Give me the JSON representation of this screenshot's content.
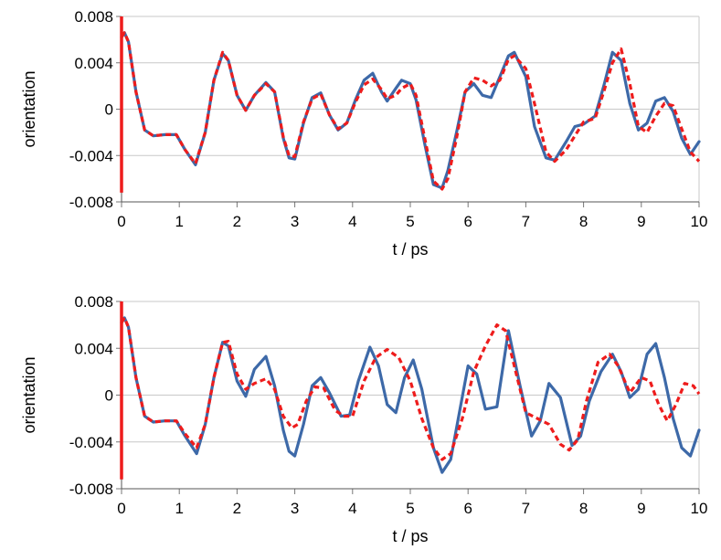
{
  "chart_data": [
    {
      "type": "line",
      "xlabel": "t / ps",
      "ylabel": "orientation",
      "xlim": [
        0,
        10
      ],
      "ylim": [
        -0.008,
        0.008
      ],
      "xticks": [
        0,
        1,
        2,
        3,
        4,
        5,
        6,
        7,
        8,
        9,
        10
      ],
      "yticks": [
        -0.008,
        -0.004,
        0,
        0.004,
        0.008
      ],
      "xtick_labels": [
        "0",
        "1",
        "2",
        "3",
        "4",
        "5",
        "6",
        "7",
        "8",
        "9",
        "10"
      ],
      "ytick_labels": [
        "-0.008",
        "-0.004",
        "0",
        "0.004",
        "0.008"
      ],
      "grid": "horizontal",
      "series": [
        {
          "color": "#3d69a8",
          "style": "solid",
          "x": [
            0,
            0.05,
            0.12,
            0.25,
            0.4,
            0.55,
            0.75,
            0.95,
            1.1,
            1.28,
            1.45,
            1.6,
            1.75,
            1.85,
            2.0,
            2.15,
            2.3,
            2.5,
            2.65,
            2.8,
            2.9,
            3.0,
            3.15,
            3.3,
            3.45,
            3.6,
            3.75,
            3.9,
            4.05,
            4.2,
            4.35,
            4.5,
            4.6,
            4.75,
            4.85,
            5.0,
            5.1,
            5.25,
            5.4,
            5.55,
            5.65,
            5.8,
            5.95,
            6.1,
            6.25,
            6.4,
            6.55,
            6.7,
            6.8,
            7.0,
            7.15,
            7.35,
            7.5,
            7.7,
            7.85,
            8.0,
            8.2,
            8.35,
            8.5,
            8.65,
            8.8,
            8.95,
            9.1,
            9.25,
            9.4,
            9.55,
            9.7,
            9.85,
            10
          ],
          "y": [
            0.0062,
            0.0066,
            0.0058,
            0.0015,
            -0.0018,
            -0.0023,
            -0.0022,
            -0.0022,
            -0.0035,
            -0.0048,
            -0.002,
            0.0025,
            0.0048,
            0.0042,
            0.0012,
            -0.0001,
            0.0012,
            0.0023,
            0.0015,
            -0.0025,
            -0.0042,
            -0.0043,
            -0.0012,
            0.001,
            0.0014,
            -0.0005,
            -0.0018,
            -0.0012,
            0.0008,
            0.0025,
            0.0031,
            0.0015,
            0.0007,
            0.0018,
            0.0025,
            0.0022,
            0.0008,
            -0.003,
            -0.0065,
            -0.0068,
            -0.0053,
            -0.002,
            0.0015,
            0.0022,
            0.0012,
            0.001,
            0.0028,
            0.0046,
            0.0049,
            0.0028,
            -0.0015,
            -0.0042,
            -0.0044,
            -0.0028,
            -0.0015,
            -0.0013,
            -0.0006,
            0.002,
            0.0049,
            0.0042,
            0.0005,
            -0.0018,
            -0.0012,
            0.0007,
            0.001,
            -0.0002,
            -0.0025,
            -0.0039,
            -0.0028
          ]
        },
        {
          "color": "#ee1c1c",
          "style": "dashed",
          "x": [
            0,
            0.05,
            0.12,
            0.25,
            0.4,
            0.55,
            0.75,
            0.95,
            1.1,
            1.28,
            1.45,
            1.6,
            1.75,
            1.85,
            2.0,
            2.15,
            2.3,
            2.5,
            2.65,
            2.8,
            2.9,
            3.0,
            3.15,
            3.3,
            3.45,
            3.6,
            3.75,
            3.9,
            4.05,
            4.2,
            4.35,
            4.5,
            4.6,
            4.75,
            4.85,
            5.0,
            5.1,
            5.25,
            5.4,
            5.55,
            5.65,
            5.8,
            5.95,
            6.1,
            6.25,
            6.4,
            6.55,
            6.7,
            6.8,
            7.0,
            7.15,
            7.35,
            7.5,
            7.7,
            7.85,
            8.0,
            8.2,
            8.35,
            8.5,
            8.65,
            8.8,
            8.95,
            9.1,
            9.25,
            9.4,
            9.55,
            9.7,
            9.85,
            10
          ],
          "y": [
            0.0062,
            0.0066,
            0.0058,
            0.0015,
            -0.0018,
            -0.0023,
            -0.0022,
            -0.0022,
            -0.0035,
            -0.0047,
            -0.002,
            0.0025,
            0.0049,
            0.0042,
            0.0012,
            -0.0001,
            0.0012,
            0.0022,
            0.0015,
            -0.0024,
            -0.004,
            -0.0041,
            -0.0011,
            0.0009,
            0.0013,
            -0.0005,
            -0.0017,
            -0.0012,
            0.0006,
            0.0021,
            0.0026,
            0.0017,
            0.0009,
            0.0012,
            0.0018,
            0.0022,
            0.0012,
            -0.0025,
            -0.0062,
            -0.0069,
            -0.006,
            -0.0025,
            0.0015,
            0.0027,
            0.0025,
            0.002,
            0.0025,
            0.0043,
            0.0046,
            0.0035,
            0.0005,
            -0.0037,
            -0.0045,
            -0.0035,
            -0.0023,
            -0.0011,
            -0.0008,
            0.0015,
            0.004,
            0.0052,
            0.0022,
            -0.0015,
            -0.002,
            -0.0006,
            0.0005,
            0.0003,
            -0.0017,
            -0.0037,
            -0.0045
          ]
        }
      ]
    },
    {
      "type": "line",
      "xlabel": "t / ps",
      "ylabel": "orientation",
      "xlim": [
        0,
        10
      ],
      "ylim": [
        -0.008,
        0.008
      ],
      "xticks": [
        0,
        1,
        2,
        3,
        4,
        5,
        6,
        7,
        8,
        9,
        10
      ],
      "yticks": [
        -0.008,
        -0.004,
        0,
        0.004,
        0.008
      ],
      "xtick_labels": [
        "0",
        "1",
        "2",
        "3",
        "4",
        "5",
        "6",
        "7",
        "8",
        "9",
        "10"
      ],
      "ytick_labels": [
        "-0.008",
        "-0.004",
        "0",
        "0.004",
        "0.008"
      ],
      "grid": "horizontal",
      "series": [
        {
          "color": "#3d69a8",
          "style": "solid",
          "x": [
            0,
            0.05,
            0.12,
            0.25,
            0.4,
            0.55,
            0.75,
            0.95,
            1.1,
            1.3,
            1.45,
            1.6,
            1.75,
            1.85,
            2.0,
            2.15,
            2.3,
            2.5,
            2.65,
            2.8,
            2.9,
            3.0,
            3.15,
            3.3,
            3.45,
            3.6,
            3.8,
            3.95,
            4.1,
            4.3,
            4.45,
            4.6,
            4.75,
            4.9,
            5.05,
            5.2,
            5.4,
            5.55,
            5.7,
            5.85,
            6.0,
            6.15,
            6.3,
            6.5,
            6.7,
            6.9,
            7.1,
            7.25,
            7.4,
            7.6,
            7.8,
            7.95,
            8.1,
            8.3,
            8.5,
            8.65,
            8.8,
            8.95,
            9.1,
            9.25,
            9.4,
            9.55,
            9.7,
            9.85,
            10
          ],
          "y": [
            0.0062,
            0.0066,
            0.0058,
            0.0015,
            -0.0018,
            -0.0023,
            -0.0022,
            -0.0022,
            -0.0035,
            -0.005,
            -0.0025,
            0.0015,
            0.0045,
            0.0042,
            0.0012,
            -0.0001,
            0.0022,
            0.0033,
            0.0008,
            -0.003,
            -0.0048,
            -0.0052,
            -0.0025,
            0.0008,
            0.0015,
            0.0002,
            -0.0018,
            -0.0017,
            0.0012,
            0.0041,
            0.0025,
            -0.0008,
            -0.0015,
            0.0015,
            0.003,
            0.0005,
            -0.0045,
            -0.0066,
            -0.0055,
            -0.0015,
            0.0025,
            0.0018,
            -0.0012,
            -0.001,
            0.0055,
            0.0008,
            -0.0035,
            -0.0022,
            0.001,
            -0.0002,
            -0.0043,
            -0.0035,
            -0.0005,
            0.002,
            0.0035,
            0.002,
            -0.0002,
            0.0005,
            0.0035,
            0.0044,
            0.0015,
            -0.002,
            -0.0045,
            -0.0052,
            -0.003
          ]
        },
        {
          "color": "#ee1c1c",
          "style": "dashed",
          "x": [
            0,
            0.05,
            0.12,
            0.25,
            0.4,
            0.55,
            0.75,
            0.95,
            1.1,
            1.3,
            1.45,
            1.6,
            1.75,
            1.85,
            2.0,
            2.15,
            2.3,
            2.5,
            2.65,
            2.8,
            2.95,
            3.05,
            3.2,
            3.35,
            3.5,
            3.7,
            3.85,
            4.0,
            4.2,
            4.4,
            4.6,
            4.8,
            5.0,
            5.2,
            5.4,
            5.55,
            5.7,
            5.9,
            6.1,
            6.3,
            6.5,
            6.65,
            6.8,
            7.0,
            7.2,
            7.4,
            7.6,
            7.75,
            7.9,
            8.05,
            8.25,
            8.45,
            8.6,
            8.8,
            9.0,
            9.15,
            9.3,
            9.45,
            9.6,
            9.75,
            9.9,
            10
          ],
          "y": [
            0.0062,
            0.0066,
            0.0058,
            0.0015,
            -0.0018,
            -0.0023,
            -0.0022,
            -0.0022,
            -0.0033,
            -0.0045,
            -0.0025,
            0.0015,
            0.0045,
            0.0046,
            0.0018,
            0.0005,
            0.001,
            0.0014,
            0.0005,
            -0.0018,
            -0.0028,
            -0.0025,
            -0.0005,
            0.0007,
            0.0006,
            -0.0013,
            -0.0018,
            -0.0018,
            0.0012,
            0.0032,
            0.0039,
            0.0032,
            0.0012,
            -0.002,
            -0.0045,
            -0.0055,
            -0.005,
            -0.002,
            0.002,
            0.0042,
            0.006,
            0.0055,
            0.0025,
            -0.0015,
            -0.002,
            -0.0025,
            -0.0042,
            -0.0047,
            -0.0038,
            -0.0005,
            0.0028,
            0.0035,
            0.0025,
            0.0002,
            0.0015,
            0.0012,
            -0.0008,
            -0.0022,
            -0.0008,
            0.001,
            0.0008,
            0.0001
          ]
        }
      ]
    }
  ]
}
